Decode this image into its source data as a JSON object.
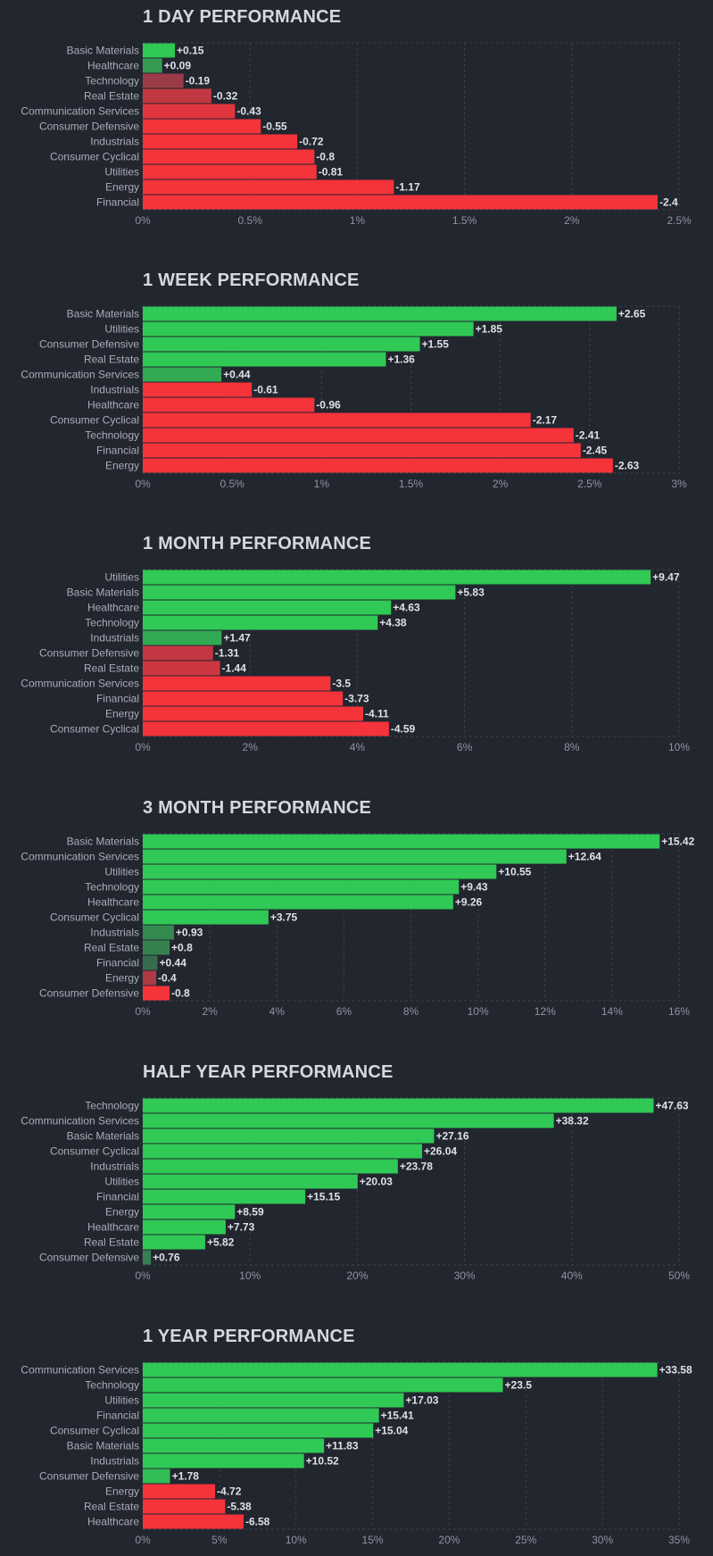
{
  "chart_data": [
    {
      "type": "bar",
      "orientation": "horizontal",
      "title": "1 DAY PERFORMANCE",
      "categories": [
        "Basic Materials",
        "Healthcare",
        "Technology",
        "Real Estate",
        "Communication Services",
        "Consumer Defensive",
        "Industrials",
        "Consumer Cyclical",
        "Utilities",
        "Energy",
        "Financial"
      ],
      "values": [
        0.15,
        0.09,
        -0.19,
        -0.32,
        -0.43,
        -0.55,
        -0.72,
        -0.8,
        -0.81,
        -1.17,
        -2.4
      ],
      "value_labels": [
        "+0.15",
        "+0.09",
        "-0.19",
        "-0.32",
        "-0.43",
        "-0.55",
        "-0.72",
        "-0.8",
        "-0.81",
        "-1.17",
        "-2.4"
      ],
      "xticks": [
        "0%",
        "0.5%",
        "1%",
        "1.5%",
        "2%",
        "2.5%"
      ],
      "xlim": [
        0,
        2.5
      ],
      "xlabel": "",
      "ylabel": "",
      "grid": true
    },
    {
      "type": "bar",
      "orientation": "horizontal",
      "title": "1 WEEK PERFORMANCE",
      "categories": [
        "Basic Materials",
        "Utilities",
        "Consumer Defensive",
        "Real Estate",
        "Communication Services",
        "Industrials",
        "Healthcare",
        "Consumer Cyclical",
        "Technology",
        "Financial",
        "Energy"
      ],
      "values": [
        2.65,
        1.85,
        1.55,
        1.36,
        0.44,
        -0.61,
        -0.96,
        -2.17,
        -2.41,
        -2.45,
        -2.63
      ],
      "value_labels": [
        "+2.65",
        "+1.85",
        "+1.55",
        "+1.36",
        "+0.44",
        "-0.61",
        "-0.96",
        "-2.17",
        "-2.41",
        "-2.45",
        "-2.63"
      ],
      "xticks": [
        "0%",
        "0.5%",
        "1%",
        "1.5%",
        "2%",
        "2.5%",
        "3%"
      ],
      "xlim": [
        0,
        3
      ],
      "xlabel": "",
      "ylabel": "",
      "grid": true
    },
    {
      "type": "bar",
      "orientation": "horizontal",
      "title": "1 MONTH PERFORMANCE",
      "categories": [
        "Utilities",
        "Basic Materials",
        "Healthcare",
        "Technology",
        "Industrials",
        "Consumer Defensive",
        "Real Estate",
        "Communication Services",
        "Financial",
        "Energy",
        "Consumer Cyclical"
      ],
      "values": [
        9.47,
        5.83,
        4.63,
        4.38,
        1.47,
        -1.31,
        -1.44,
        -3.5,
        -3.73,
        -4.11,
        -4.59
      ],
      "value_labels": [
        "+9.47",
        "+5.83",
        "+4.63",
        "+4.38",
        "+1.47",
        "-1.31",
        "-1.44",
        "-3.5",
        "-3.73",
        "-4.11",
        "-4.59"
      ],
      "xticks": [
        "0%",
        "2%",
        "4%",
        "6%",
        "8%",
        "10%"
      ],
      "xlim": [
        0,
        10
      ],
      "xlabel": "",
      "ylabel": "",
      "grid": true
    },
    {
      "type": "bar",
      "orientation": "horizontal",
      "title": "3 MONTH PERFORMANCE",
      "categories": [
        "Basic Materials",
        "Communication Services",
        "Utilities",
        "Technology",
        "Healthcare",
        "Consumer Cyclical",
        "Industrials",
        "Real Estate",
        "Financial",
        "Energy",
        "Consumer Defensive"
      ],
      "values": [
        15.42,
        12.64,
        10.55,
        9.43,
        9.26,
        3.75,
        0.93,
        0.8,
        0.44,
        -0.4,
        -0.8
      ],
      "value_labels": [
        "+15.42",
        "+12.64",
        "+10.55",
        "+9.43",
        "+9.26",
        "+3.75",
        "+0.93",
        "+0.8",
        "+0.44",
        "-0.4",
        "-0.8"
      ],
      "xticks": [
        "0%",
        "2%",
        "4%",
        "6%",
        "8%",
        "10%",
        "12%",
        "14%",
        "16%"
      ],
      "xlim": [
        0,
        16
      ],
      "xlabel": "",
      "ylabel": "",
      "grid": true
    },
    {
      "type": "bar",
      "orientation": "horizontal",
      "title": "HALF YEAR PERFORMANCE",
      "categories": [
        "Technology",
        "Communication Services",
        "Basic Materials",
        "Consumer Cyclical",
        "Industrials",
        "Utilities",
        "Financial",
        "Energy",
        "Healthcare",
        "Real Estate",
        "Consumer Defensive"
      ],
      "values": [
        47.63,
        38.32,
        27.16,
        26.04,
        23.78,
        20.03,
        15.15,
        8.59,
        7.73,
        5.82,
        0.76
      ],
      "value_labels": [
        "+47.63",
        "+38.32",
        "+27.16",
        "+26.04",
        "+23.78",
        "+20.03",
        "+15.15",
        "+8.59",
        "+7.73",
        "+5.82",
        "+0.76"
      ],
      "xticks": [
        "0%",
        "10%",
        "20%",
        "30%",
        "40%",
        "50%"
      ],
      "xlim": [
        0,
        50
      ],
      "xlabel": "",
      "ylabel": "",
      "grid": true
    },
    {
      "type": "bar",
      "orientation": "horizontal",
      "title": "1 YEAR PERFORMANCE",
      "categories": [
        "Communication Services",
        "Technology",
        "Utilities",
        "Financial",
        "Consumer Cyclical",
        "Basic Materials",
        "Industrials",
        "Consumer Defensive",
        "Energy",
        "Real Estate",
        "Healthcare"
      ],
      "values": [
        33.58,
        23.5,
        17.03,
        15.41,
        15.04,
        11.83,
        10.52,
        1.78,
        -4.72,
        -5.38,
        -6.58
      ],
      "value_labels": [
        "+33.58",
        "+23.5",
        "+17.03",
        "+15.41",
        "+15.04",
        "+11.83",
        "+10.52",
        "+1.78",
        "-4.72",
        "-5.38",
        "-6.58"
      ],
      "xticks": [
        "0%",
        "5%",
        "10%",
        "15%",
        "20%",
        "25%",
        "30%",
        "35%"
      ],
      "xlim": [
        0,
        35
      ],
      "xlabel": "",
      "ylabel": "",
      "grid": true
    }
  ]
}
